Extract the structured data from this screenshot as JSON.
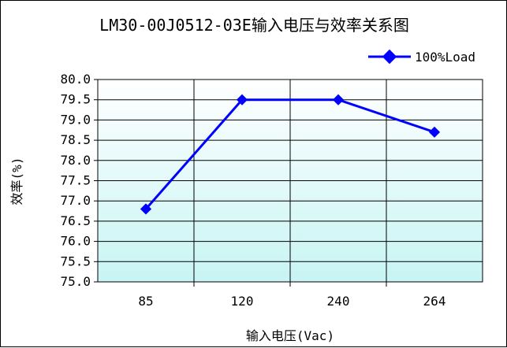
{
  "chart_data": {
    "type": "line",
    "title": "LM30-00J0512-03E输入电压与效率关系图",
    "xlabel": "输入电压(Vac)",
    "ylabel": "效率(%)",
    "categories": [
      "85",
      "120",
      "240",
      "264"
    ],
    "series": [
      {
        "name": "100%Load",
        "values": [
          76.8,
          79.5,
          79.5,
          78.7
        ],
        "color": "#0000ff",
        "marker": "diamond"
      }
    ],
    "ylim": [
      75.0,
      80.0
    ],
    "y_ticks": [
      "75.0",
      "75.5",
      "76.0",
      "76.5",
      "77.0",
      "77.5",
      "78.0",
      "78.5",
      "79.0",
      "79.5",
      "80.0"
    ],
    "grid": true,
    "legend_position": "top-right",
    "colors": {
      "plot_gradient_top": "#ffffff",
      "plot_gradient_bottom": "#c8f4f4",
      "line": "#0000ff",
      "grid": "#000000"
    }
  }
}
